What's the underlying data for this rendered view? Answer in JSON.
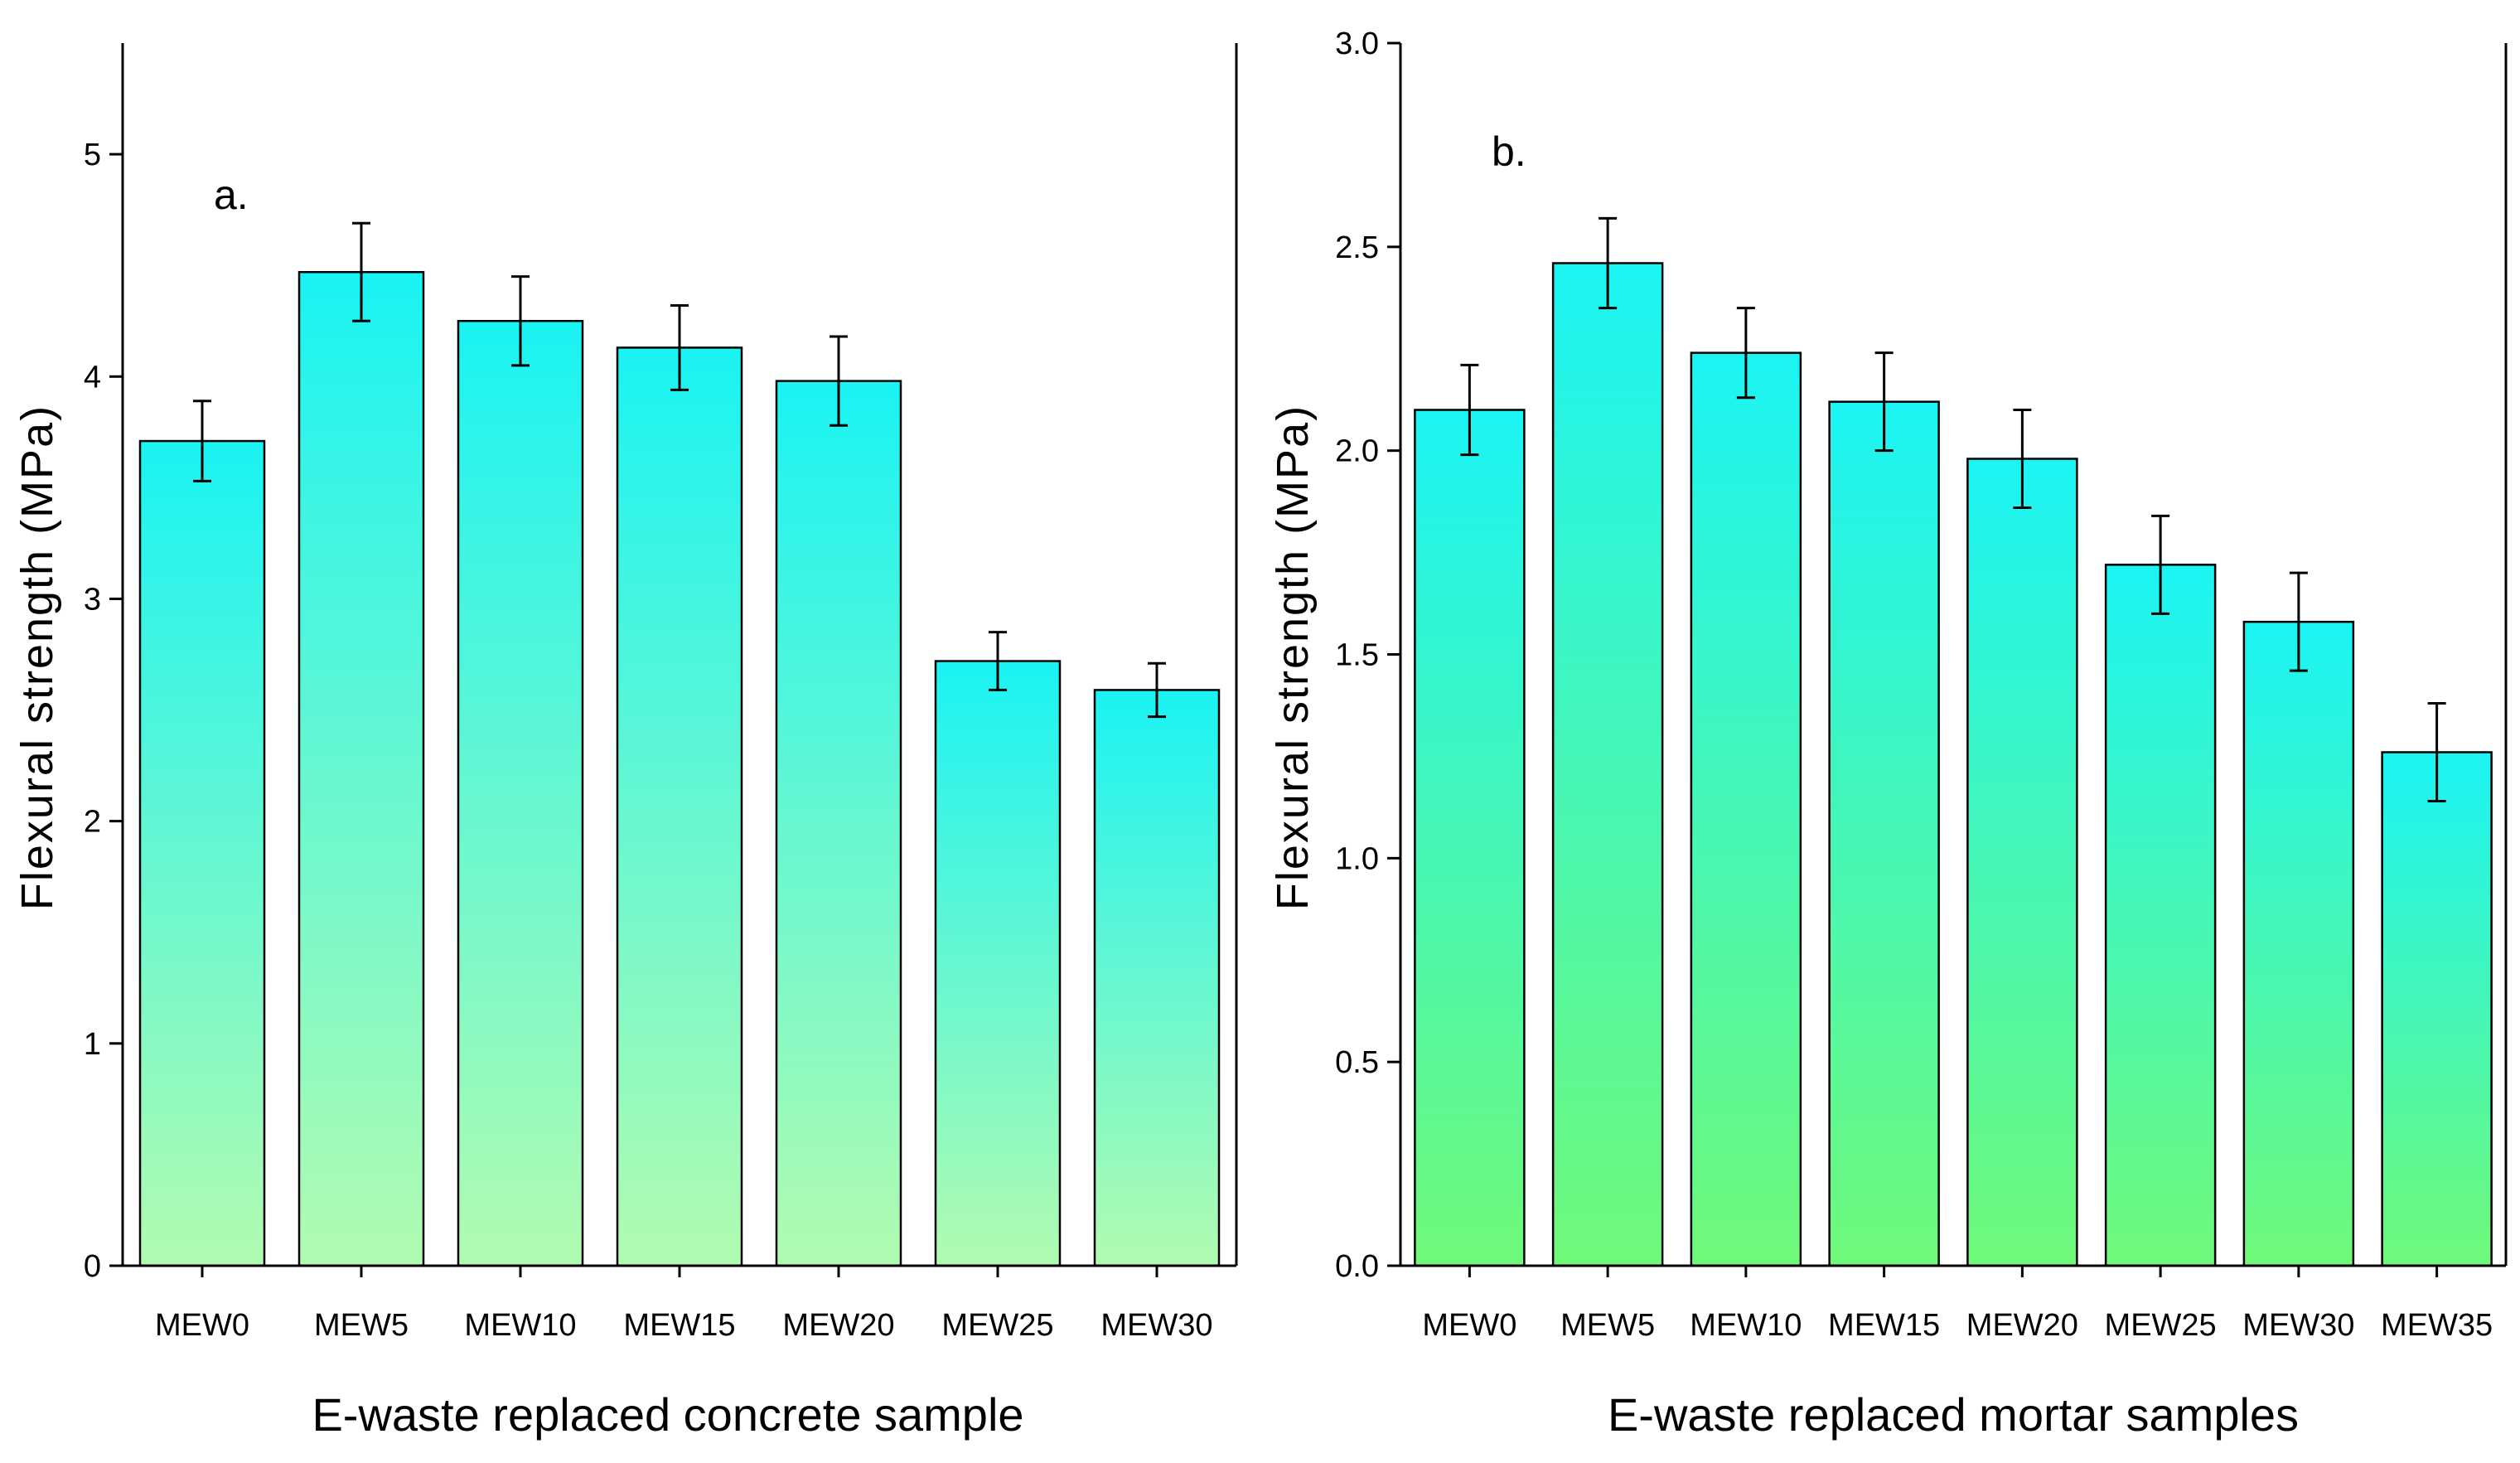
{
  "colors": {
    "panel_a_bar_top": "#19f3f3",
    "panel_a_bar_bottom": "#b2fbb0",
    "panel_b_bar_top": "#1bf4f4",
    "panel_b_bar_bottom": "#6ff979",
    "bar_stroke": "#000000",
    "axis": "#000000"
  },
  "chart_data": [
    {
      "type": "bar",
      "panel_label": "a.",
      "title": "",
      "xlabel": "E-waste replaced concrete sample",
      "ylabel": "Flexural strength (MPa)",
      "ylim": [
        0,
        5.5
      ],
      "yticks": [
        0,
        1,
        2,
        3,
        4,
        5
      ],
      "ytick_labels": [
        "0",
        "1",
        "2",
        "3",
        "4",
        "5"
      ],
      "categories": [
        "MEW0",
        "MEW5",
        "MEW10",
        "MEW15",
        "MEW20",
        "MEW25",
        "MEW30"
      ],
      "values": [
        3.71,
        4.47,
        4.25,
        4.13,
        3.98,
        2.72,
        2.59
      ],
      "errors": [
        0.18,
        0.22,
        0.2,
        0.19,
        0.2,
        0.13,
        0.12
      ],
      "grid": false,
      "legend": "none"
    },
    {
      "type": "bar",
      "panel_label": "b.",
      "title": "",
      "xlabel": "E-waste replaced mortar samples",
      "ylabel": "Flexural strength (MPa)",
      "ylim": [
        0,
        3.0
      ],
      "yticks": [
        0,
        0.5,
        1.0,
        1.5,
        2.0,
        2.5,
        3.0
      ],
      "ytick_labels": [
        "0.0",
        "0.5",
        "1.0",
        "1.5",
        "2.0",
        "2.5",
        "3.0"
      ],
      "categories": [
        "MEW0",
        "MEW5",
        "MEW10",
        "MEW15",
        "MEW20",
        "MEW25",
        "MEW30",
        "MEW35"
      ],
      "values": [
        2.1,
        2.46,
        2.24,
        2.12,
        1.98,
        1.72,
        1.58,
        1.26
      ],
      "errors": [
        0.11,
        0.11,
        0.11,
        0.12,
        0.12,
        0.12,
        0.12,
        0.12
      ],
      "grid": false,
      "legend": "none"
    }
  ]
}
